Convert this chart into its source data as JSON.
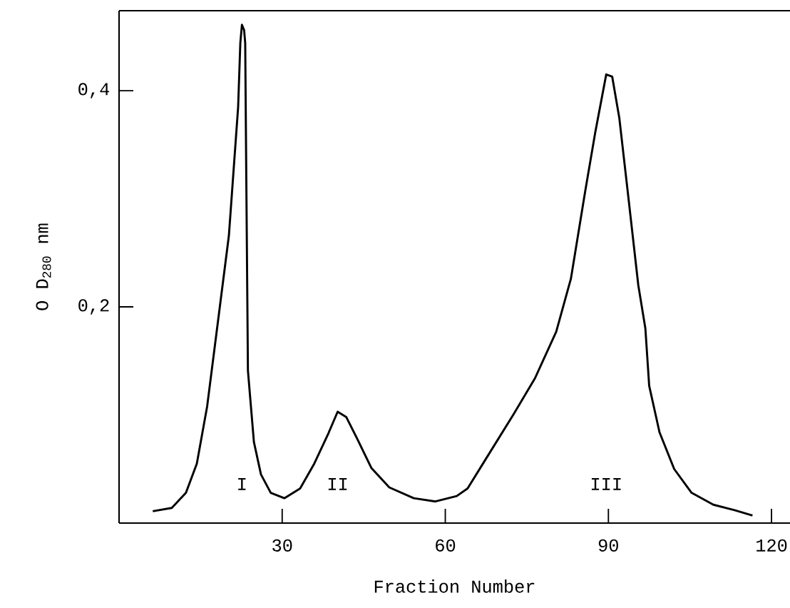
{
  "chart_data": {
    "type": "line",
    "xlabel": "Fraction Number",
    "ylabel": "O D$_{280}$ nm",
    "xlim": [
      0,
      123.4
    ],
    "ylim": [
      0,
      0.474
    ],
    "xticks": [
      30,
      60,
      90,
      120
    ],
    "yticks": [
      {
        "value": 0.2,
        "label": "0,2"
      },
      {
        "value": 0.4,
        "label": "0,4"
      }
    ],
    "series": [
      {
        "color": "#000000",
        "x": [
          6.2,
          9.7,
          12.3,
          14.3,
          16.2,
          18.2,
          20.2,
          21.9,
          22.3,
          22.6,
          23.0,
          23.2,
          23.4,
          23.7,
          24.8,
          26.1,
          27.9,
          30.4,
          33.3,
          35.9,
          38.5,
          40.2,
          41.8,
          43.8,
          46.4,
          49.7,
          54.2,
          58.2,
          62.1,
          64.1,
          67.3,
          72.6,
          76.5,
          80.4,
          83.1,
          85.7,
          87.6,
          89.6,
          90.7,
          92.0,
          93.5,
          95.5,
          96.8,
          97.5,
          99.4,
          102.1,
          105.3,
          109.3,
          113.2,
          116.5
        ],
        "values": [
          0.011,
          0.014,
          0.028,
          0.055,
          0.108,
          0.187,
          0.266,
          0.385,
          0.444,
          0.461,
          0.456,
          0.444,
          0.319,
          0.141,
          0.075,
          0.045,
          0.028,
          0.023,
          0.032,
          0.055,
          0.083,
          0.103,
          0.098,
          0.078,
          0.051,
          0.033,
          0.023,
          0.02,
          0.025,
          0.032,
          0.058,
          0.101,
          0.134,
          0.177,
          0.226,
          0.306,
          0.362,
          0.415,
          0.413,
          0.375,
          0.309,
          0.22,
          0.18,
          0.127,
          0.084,
          0.05,
          0.028,
          0.017,
          0.012,
          0.007
        ]
      }
    ],
    "annotations": [
      "I",
      "II",
      "III"
    ]
  }
}
